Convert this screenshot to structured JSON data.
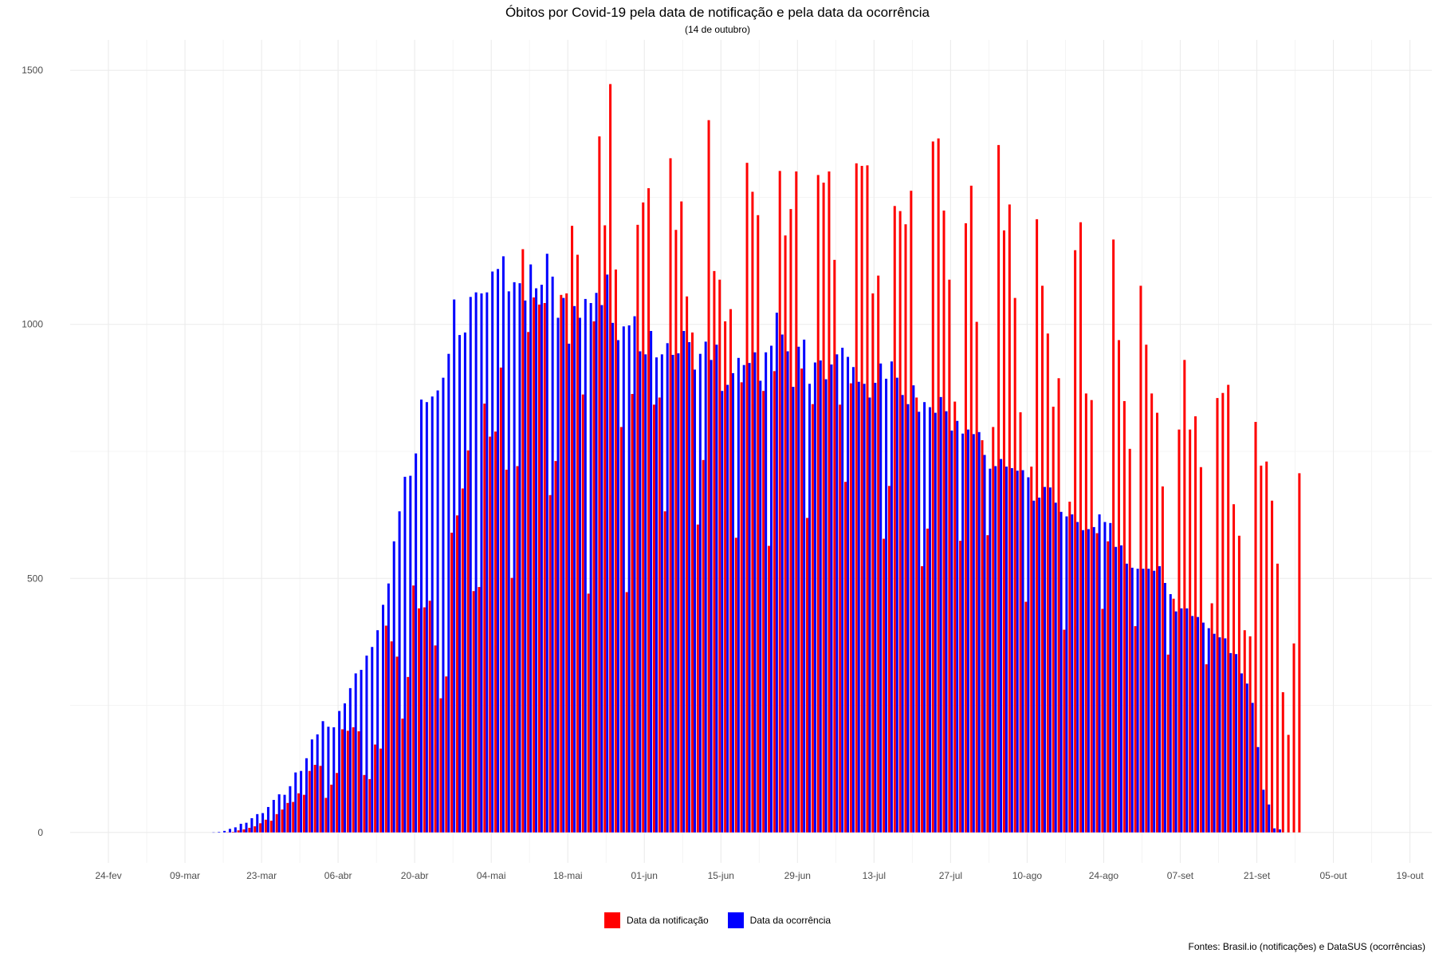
{
  "chart_data": {
    "type": "bar",
    "title": "Óbitos por Covid-19 pela data de notificação e pela data da ocorrência",
    "subtitle": "(14 de outubro)",
    "xlabel": "",
    "ylabel": "",
    "caption": "Fontes: Brasil.io (notificações) e DataSUS (ocorrências)",
    "x_start": "2020-02-17",
    "x_range": [
      "2020-02-17",
      "2020-10-23"
    ],
    "xtick_dates": [
      "2020-02-24",
      "2020-03-09",
      "2020-03-23",
      "2020-04-06",
      "2020-04-20",
      "2020-05-04",
      "2020-05-18",
      "2020-06-01",
      "2020-06-15",
      "2020-06-29",
      "2020-07-13",
      "2020-07-27",
      "2020-08-10",
      "2020-08-24",
      "2020-09-07",
      "2020-09-21",
      "2020-10-05",
      "2020-10-19"
    ],
    "xtick_labels": [
      "24-fev",
      "09-mar",
      "23-mar",
      "06-abr",
      "20-abr",
      "04-mai",
      "18-mai",
      "01-jun",
      "15-jun",
      "29-jun",
      "13-jul",
      "27-jul",
      "10-ago",
      "24-ago",
      "07-set",
      "21-set",
      "05-out",
      "19-out"
    ],
    "ylim": [
      -60,
      1560
    ],
    "ytick_values": [
      0,
      500,
      1000,
      1500
    ],
    "ytick_labels": [
      "0",
      "500",
      "1000",
      "1500"
    ],
    "grid": true,
    "legend_position": "bottom",
    "series": [
      {
        "name": "Data da notificação",
        "color": "#ff0000",
        "start": "2020-03-17",
        "values": [
          0,
          1,
          4,
          6,
          9,
          12,
          18,
          25,
          23,
          36,
          45,
          58,
          60,
          77,
          74,
          121,
          133,
          131,
          68,
          94,
          117,
          203,
          200,
          207,
          199,
          113,
          105,
          173,
          165,
          407,
          376,
          346,
          224,
          306,
          486,
          441,
          443,
          456,
          368,
          264,
          307,
          590,
          624,
          677,
          752,
          475,
          483,
          844,
          779,
          789,
          915,
          714,
          501,
          721,
          1148,
          985,
          1053,
          1039,
          1042,
          664,
          731,
          1058,
          1061,
          1194,
          1137,
          862,
          470,
          1006,
          1370,
          1195,
          1473,
          1108,
          798,
          473,
          863,
          1196,
          1240,
          1268,
          842,
          856,
          632,
          1327,
          1186,
          1242,
          1055,
          984,
          606,
          733,
          1402,
          1105,
          1088,
          1006,
          1030,
          580,
          886,
          1318,
          1261,
          1215,
          869,
          564,
          908,
          1302,
          1175,
          1227,
          1301,
          913,
          619,
          843,
          1294,
          1279,
          1301,
          1127,
          842,
          690,
          884,
          1317,
          1312,
          1313,
          1061,
          1096,
          578,
          682,
          1233,
          1223,
          1197,
          1263,
          856,
          524,
          598,
          1360,
          1366,
          1224,
          1088,
          848,
          574,
          1199,
          1273,
          1005,
          772,
          585,
          798,
          1353,
          1185,
          1236,
          1052,
          827,
          454,
          720,
          1207,
          1076,
          982,
          838,
          894,
          399,
          651,
          1146,
          1201,
          864,
          851,
          589,
          440,
          573,
          1167,
          969,
          849,
          755,
          406,
          1076,
          960,
          864,
          826,
          681,
          350,
          460,
          793,
          930,
          793,
          819,
          719,
          331,
          451,
          855,
          865,
          881,
          646,
          584,
          398,
          386,
          808,
          722,
          730,
          653,
          529,
          276,
          192,
          372,
          707
        ]
      },
      {
        "name": "Data da ocorrência",
        "color": "#0000ff",
        "start": "2020-03-14",
        "values": [
          0,
          1,
          3,
          7,
          10,
          17,
          19,
          28,
          36,
          38,
          50,
          64,
          75,
          74,
          91,
          118,
          121,
          146,
          183,
          193,
          219,
          208,
          207,
          239,
          254,
          284,
          313,
          320,
          348,
          365,
          398,
          448,
          490,
          573,
          632,
          700,
          702,
          746,
          852,
          847,
          858,
          870,
          895,
          942,
          1049,
          979,
          984,
          1054,
          1063,
          1061,
          1063,
          1104,
          1109,
          1134,
          1065,
          1083,
          1081,
          1047,
          1118,
          1071,
          1078,
          1139,
          1094,
          1013,
          1052,
          962,
          1036,
          1013,
          1050,
          1042,
          1062,
          1038,
          1098,
          1003,
          969,
          996,
          998,
          1016,
          947,
          941,
          987,
          935,
          941,
          963,
          940,
          943,
          987,
          965,
          911,
          942,
          966,
          930,
          960,
          869,
          881,
          904,
          934,
          920,
          924,
          945,
          889,
          945,
          958,
          1023,
          980,
          947,
          877,
          956,
          970,
          883,
          925,
          929,
          892,
          921,
          941,
          954,
          936,
          916,
          887,
          883,
          856,
          885,
          923,
          893,
          927,
          895,
          861,
          843,
          880,
          828,
          847,
          837,
          826,
          857,
          829,
          791,
          810,
          785,
          793,
          784,
          788,
          743,
          716,
          721,
          735,
          720,
          717,
          712,
          713,
          699,
          653,
          659,
          680,
          679,
          649,
          631,
          622,
          626,
          611,
          595,
          597,
          601,
          626,
          611,
          609,
          562,
          565,
          529,
          521,
          519,
          519,
          519,
          515,
          524,
          491,
          469,
          435,
          441,
          441,
          426,
          424,
          413,
          402,
          391,
          384,
          382,
          353,
          351,
          313,
          293,
          255,
          168,
          84,
          55,
          8,
          6
        ]
      }
    ]
  }
}
